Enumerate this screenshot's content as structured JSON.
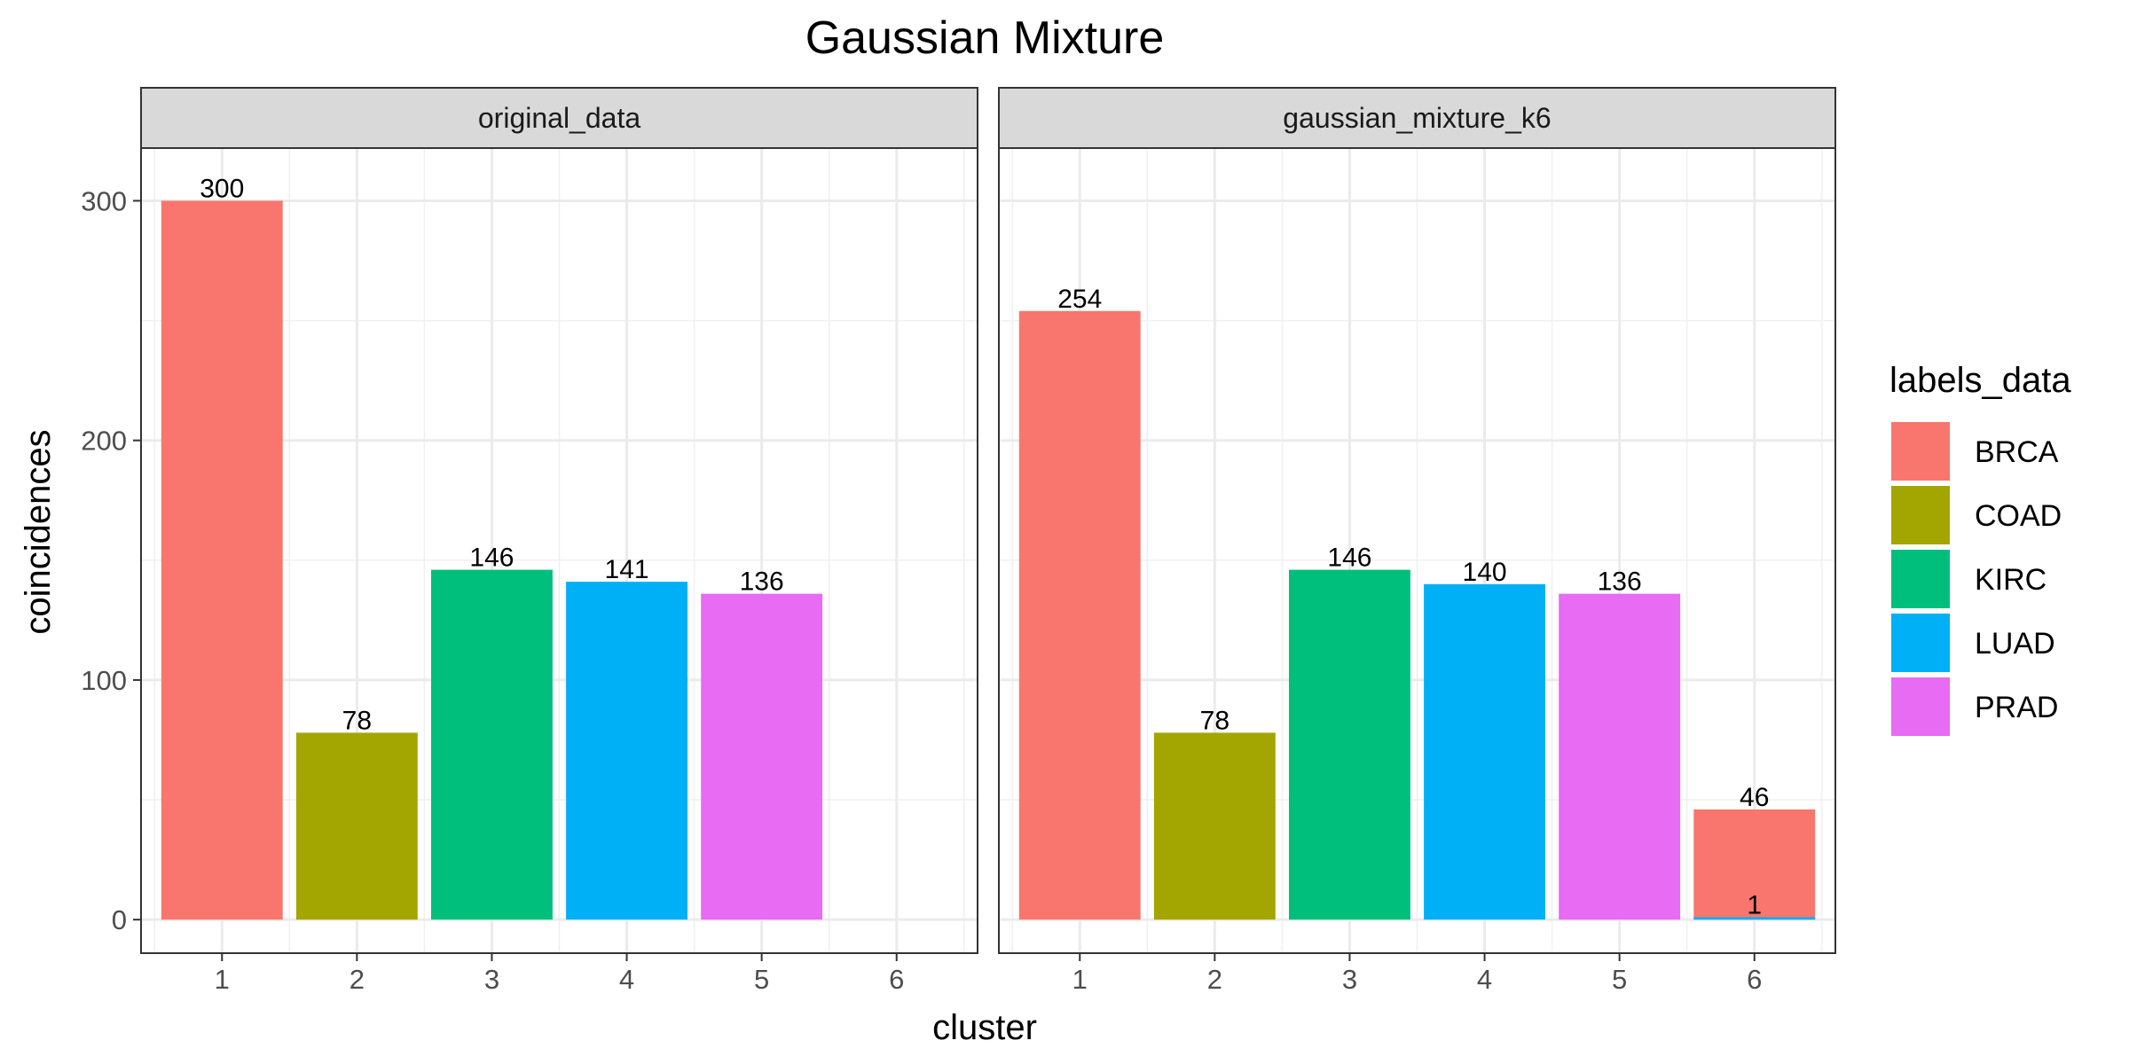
{
  "chart_data": {
    "type": "bar",
    "title": "Gaussian Mixture",
    "xlabel": "cluster",
    "ylabel": "coincidences",
    "x_ticks": [
      "1",
      "2",
      "3",
      "4",
      "5",
      "6"
    ],
    "y_ticks": [
      "0",
      "100",
      "200",
      "300"
    ],
    "ylim": [
      -14,
      322
    ],
    "grid": true,
    "legend": {
      "title": "labels_data",
      "position": "right",
      "entries": [
        {
          "name": "BRCA",
          "color": "#F8766D"
        },
        {
          "name": "COAD",
          "color": "#A3A500"
        },
        {
          "name": "KIRC",
          "color": "#00BF7D"
        },
        {
          "name": "LUAD",
          "color": "#00B0F6"
        },
        {
          "name": "PRAD",
          "color": "#E76BF3"
        }
      ]
    },
    "panels": [
      {
        "name": "original_data",
        "bars": [
          {
            "x": 1,
            "label": "BRCA",
            "value": 300
          },
          {
            "x": 2,
            "label": "COAD",
            "value": 78
          },
          {
            "x": 3,
            "label": "KIRC",
            "value": 146
          },
          {
            "x": 4,
            "label": "LUAD",
            "value": 141
          },
          {
            "x": 5,
            "label": "PRAD",
            "value": 136
          }
        ]
      },
      {
        "name": "gaussian_mixture_k6",
        "bars": [
          {
            "x": 1,
            "label": "BRCA",
            "value": 254
          },
          {
            "x": 2,
            "label": "COAD",
            "value": 78
          },
          {
            "x": 3,
            "label": "KIRC",
            "value": 146
          },
          {
            "x": 4,
            "label": "LUAD",
            "value": 140
          },
          {
            "x": 5,
            "label": "PRAD",
            "value": 136
          },
          {
            "x": 6,
            "label": "BRCA",
            "value": 46
          },
          {
            "x": 6,
            "label": "LUAD",
            "value": 1
          }
        ]
      }
    ]
  }
}
